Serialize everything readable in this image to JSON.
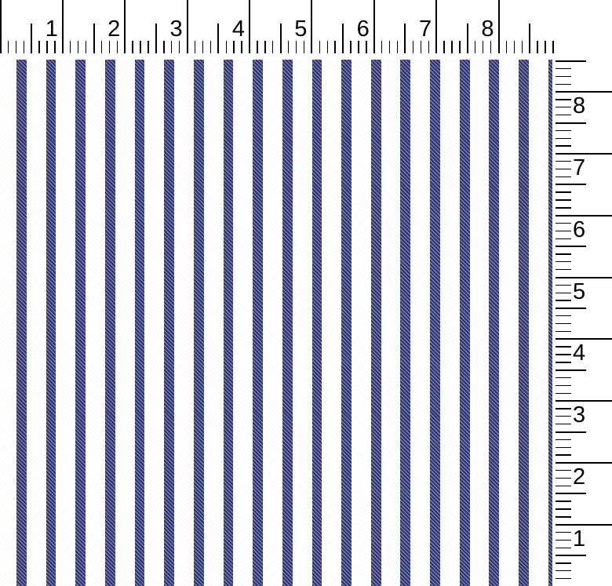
{
  "scan": {
    "background": "#ffffff"
  },
  "top_ruler": {
    "labels": [
      "1",
      "2",
      "3",
      "4",
      "5",
      "6",
      "7",
      "8"
    ],
    "tick_color": "#000000"
  },
  "right_ruler": {
    "labels": [
      "8",
      "7",
      "6",
      "5",
      "4",
      "3",
      "2",
      "1"
    ],
    "tick_color": "#000000"
  },
  "fabric": {
    "stripe_count": 19,
    "stripe_dark": "#2d346e",
    "stripe_mid": "#5a6199",
    "stripe_light": "#989ec6",
    "ground": "#ffffff",
    "ground_speck": "#f5f6fa",
    "edge_note": "rightmost stripe clipped at fabric selvage edge"
  }
}
